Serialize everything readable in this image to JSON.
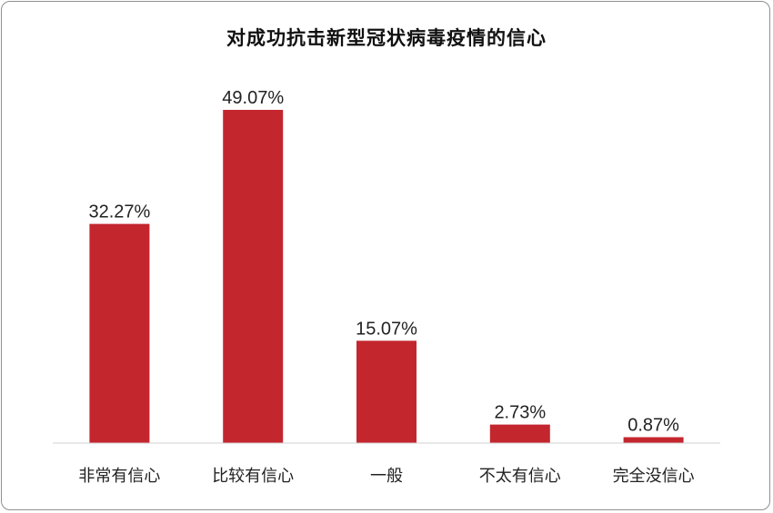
{
  "chart_data": {
    "type": "bar",
    "title": "对成功抗击新型冠状病毒疫情的信心",
    "categories": [
      "非常有信心",
      "比较有信心",
      "一般",
      "不太有信心",
      "完全没信心"
    ],
    "values": [
      32.27,
      49.07,
      15.07,
      2.73,
      0.87
    ],
    "value_labels": [
      "32.27%",
      "49.07%",
      "15.07%",
      "2.73%",
      "0.87%"
    ],
    "unit": "%",
    "ylim": [
      0,
      50
    ],
    "grid": false,
    "legend": "none",
    "bar_color": "#c4262e",
    "axis_color": "#d0d0d0"
  }
}
